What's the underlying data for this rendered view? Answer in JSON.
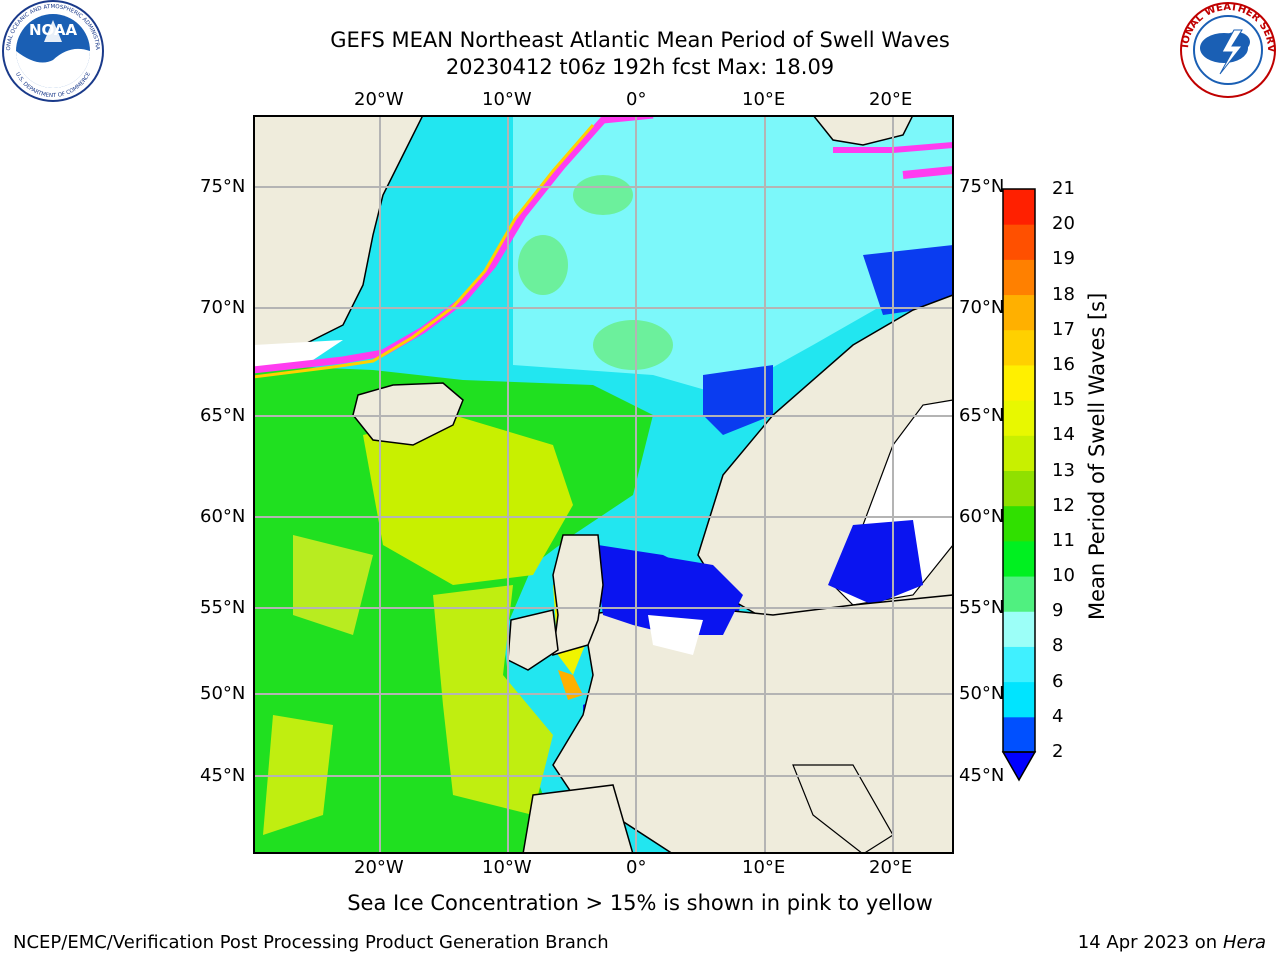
{
  "header": {
    "title_line1": "GEFS MEAN Northeast Atlantic Mean Period of Swell Waves",
    "title_line2": "20230412 t06z 192h fcst   Max: 18.09"
  },
  "logos": {
    "left": {
      "text": "NOAA",
      "ring_top": "NATIONAL OCEANIC AND ATMOSPHERIC ADMINISTRATION",
      "ring_bottom": "U.S. DEPARTMENT OF COMMERCE"
    },
    "right": {
      "ring": "NATIONAL WEATHER SERVICE"
    }
  },
  "map": {
    "lon_labels": [
      "20°W",
      "10°W",
      "0°",
      "10°E",
      "20°E"
    ],
    "lat_labels": [
      "75°N",
      "70°N",
      "65°N",
      "60°N",
      "55°N",
      "50°N",
      "45°N"
    ],
    "colors": {
      "land": "#efecdc",
      "ocean_default": "#22e6f0",
      "ice_edge": "#ff3cf0",
      "coast": "#000000",
      "grid": "#b4b4b4"
    }
  },
  "colorbar": {
    "ticks": [
      "2",
      "4",
      "6",
      "8",
      "9",
      "10",
      "11",
      "12",
      "13",
      "14",
      "15",
      "16",
      "17",
      "18",
      "19",
      "20",
      "21"
    ],
    "colors": [
      "#0050ff",
      "#00e4ff",
      "#40f0ff",
      "#9cfff8",
      "#50f080",
      "#00f020",
      "#30e000",
      "#90e000",
      "#c8f000",
      "#e8f800",
      "#fff000",
      "#ffd000",
      "#ffb000",
      "#ff8000",
      "#ff5000",
      "#ff2000",
      "#ff0000"
    ],
    "underflow_color": "#0000ff",
    "label": "Mean Period of Swell Waves [s]"
  },
  "caption": "Sea Ice Concentration > 15% is shown in pink to yellow",
  "footer": {
    "left": "NCEP/EMC/Verification Post Processing Product Generation Branch",
    "right_date": "14 Apr 2023 on",
    "right_host": "Hera"
  }
}
